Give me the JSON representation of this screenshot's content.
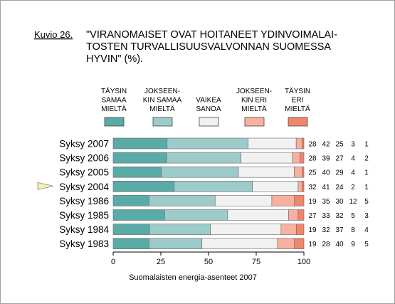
{
  "figure_label": "Kuvio 26.",
  "title_lines": [
    "\"VIRANOMAISET OVAT HOITANEET YDINVOIMALAI-",
    "TOSTEN TURVALLISUUSVALVONNAN SUOMESSA",
    "HYVIN\" (%)."
  ],
  "footer": "Suomalaisten energia-asenteet 2007",
  "chart_data": {
    "type": "bar",
    "orientation": "horizontal",
    "stacked": true,
    "xlim": [
      0,
      100
    ],
    "x_ticks": [
      "0",
      "25",
      "50",
      "75",
      "100"
    ],
    "grid": false,
    "legend_position": "top",
    "categories": [
      "Syksy 2007",
      "Syksy 2006",
      "Syksy 2005",
      "Syksy 2004",
      "Syksy 1986",
      "Syksy 1985",
      "Syksy 1984",
      "Syksy 1983"
    ],
    "highlighted_category": "Syksy 1986",
    "series": [
      {
        "name_lines": [
          "TÄYSIN",
          "SAMAA",
          "MIELTÄ"
        ],
        "color": "#5aaaa8",
        "values": [
          28,
          28,
          25,
          32,
          19,
          27,
          19,
          19
        ]
      },
      {
        "name_lines": [
          "JOKSEEN-",
          "KIN SAMAA",
          "MIELTÄ"
        ],
        "color": "#9ccbc9",
        "values": [
          42,
          39,
          40,
          41,
          35,
          33,
          32,
          28
        ]
      },
      {
        "name_lines": [
          "VAIKEA",
          "SANOA"
        ],
        "color": "#f1f1f1",
        "values": [
          25,
          27,
          29,
          24,
          30,
          32,
          37,
          40
        ]
      },
      {
        "name_lines": [
          "JOKSEEN-",
          "KIN ERI",
          "MIELTÄ"
        ],
        "color": "#f8b1a0",
        "values": [
          3,
          4,
          4,
          2,
          12,
          5,
          8,
          9
        ]
      },
      {
        "name_lines": [
          "TÄYSIN",
          "ERI",
          "MIELTÄ"
        ],
        "color": "#f2866c",
        "values": [
          1,
          2,
          1,
          1,
          5,
          3,
          4,
          5
        ]
      }
    ]
  }
}
